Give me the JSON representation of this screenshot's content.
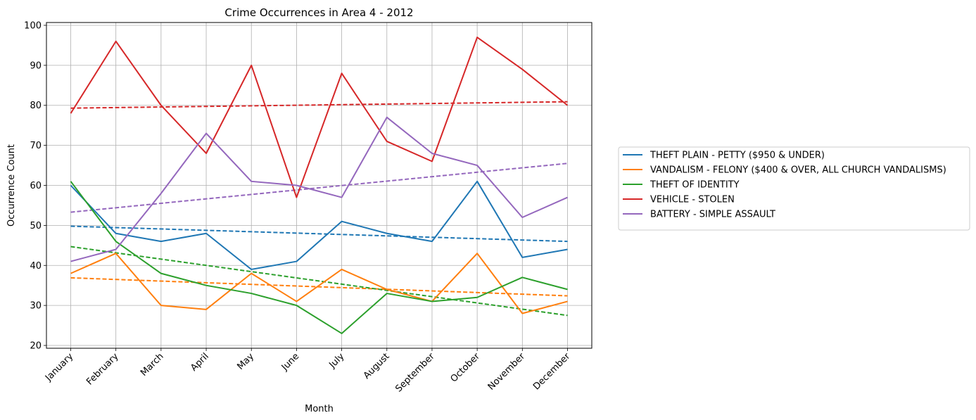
{
  "chart_data": {
    "type": "line",
    "title": "Crime Occurrences in Area 4 - 2012",
    "xlabel": "Month",
    "ylabel": "Occurrence Count",
    "categories": [
      "January",
      "February",
      "March",
      "April",
      "May",
      "June",
      "July",
      "August",
      "September",
      "October",
      "November",
      "December"
    ],
    "ylim": [
      19.3,
      100.7
    ],
    "yticks": [
      20,
      30,
      40,
      50,
      60,
      70,
      80,
      90,
      100
    ],
    "grid": true,
    "legend_position": "right",
    "series": [
      {
        "name": "THEFT PLAIN - PETTY ($950 & UNDER)",
        "color": "#1f77b4",
        "values": [
          60,
          48,
          46,
          48,
          39,
          41,
          51,
          48,
          46,
          61,
          42,
          44
        ],
        "trend": [
          49.8,
          46.0
        ]
      },
      {
        "name": "VANDALISM - FELONY ($400 & OVER, ALL CHURCH VANDALISMS)",
        "color": "#ff7f0e",
        "values": [
          38,
          43,
          30,
          29,
          38,
          31,
          39,
          34,
          31,
          43,
          28,
          31
        ],
        "trend": [
          36.9,
          32.4
        ]
      },
      {
        "name": "THEFT OF IDENTITY",
        "color": "#2ca02c",
        "values": [
          61,
          46,
          38,
          35,
          33,
          30,
          23,
          33,
          31,
          32,
          37,
          34
        ],
        "trend": [
          44.7,
          27.5
        ]
      },
      {
        "name": "VEHICLE - STOLEN",
        "color": "#d62728",
        "values": [
          78,
          96,
          80,
          68,
          90,
          57,
          88,
          71,
          66,
          97,
          89,
          80
        ],
        "trend": [
          79.3,
          80.9
        ]
      },
      {
        "name": "BATTERY - SIMPLE ASSAULT",
        "color": "#9467bd",
        "values": [
          41,
          44,
          58,
          73,
          61,
          60,
          57,
          77,
          68,
          65,
          52,
          57
        ],
        "trend": [
          53.3,
          65.5
        ]
      }
    ]
  }
}
